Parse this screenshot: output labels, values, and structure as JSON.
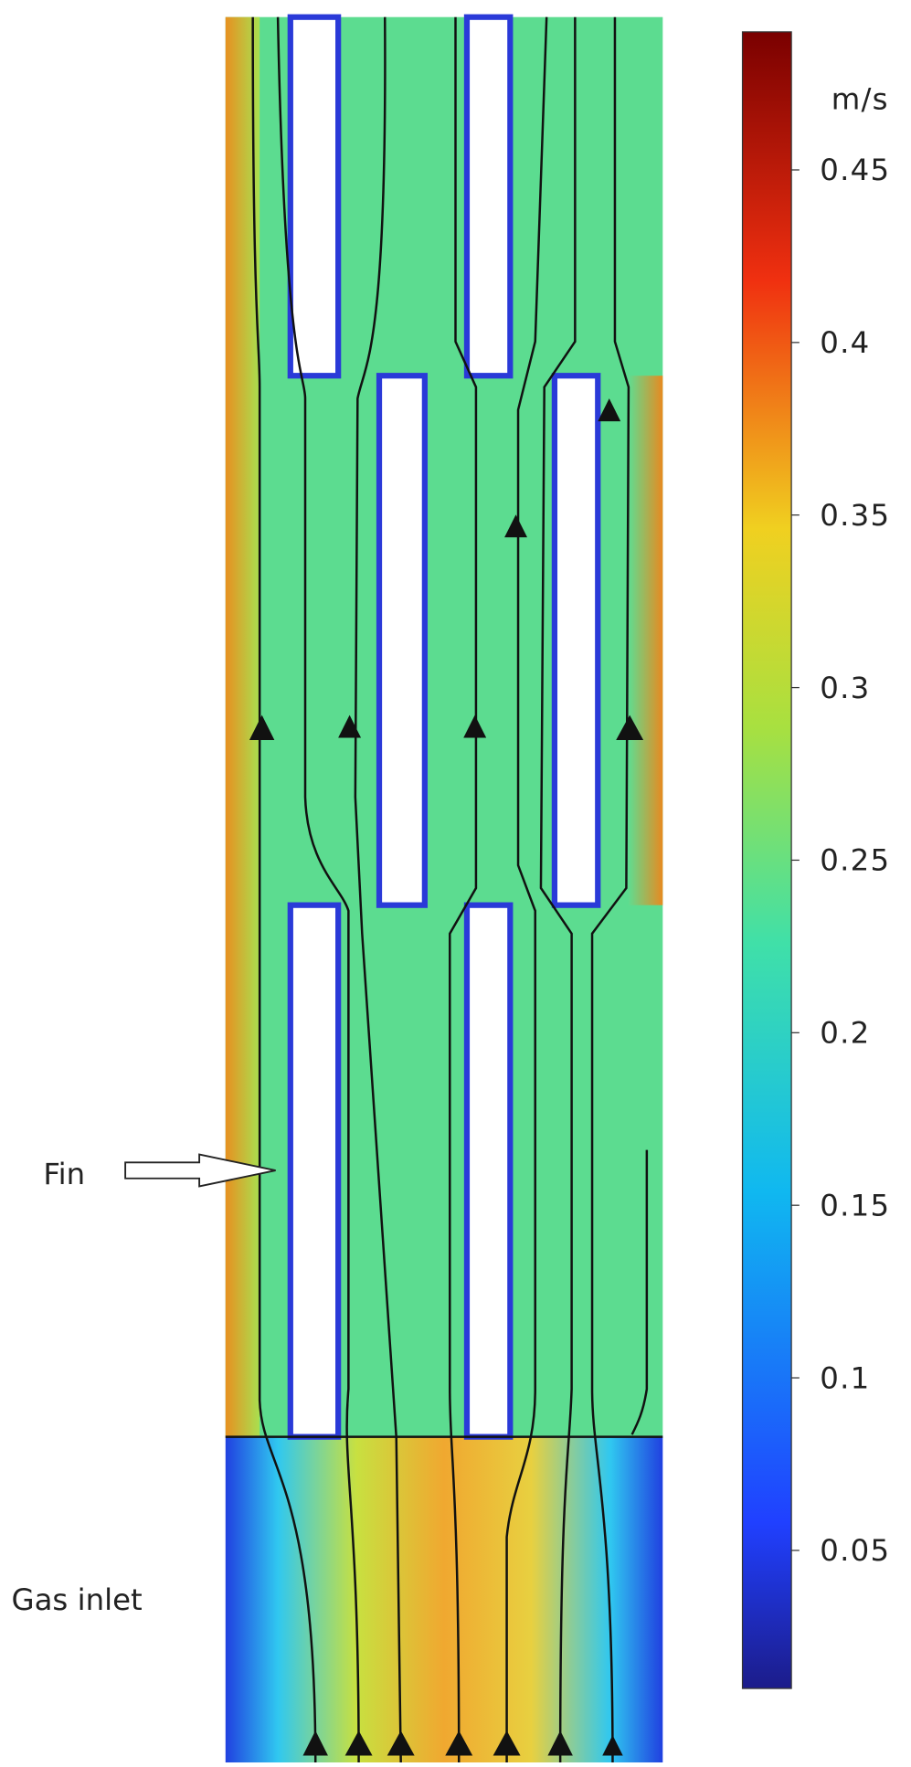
{
  "colorbar": {
    "unit": "m/s",
    "lim": [
      0.01,
      0.49
    ],
    "ticks": [
      0.05,
      0.1,
      0.15,
      0.2,
      0.25,
      0.3,
      0.35,
      0.4,
      0.45
    ]
  },
  "annotations": {
    "fin": "Fin",
    "inlet": "Gas inlet"
  }
}
